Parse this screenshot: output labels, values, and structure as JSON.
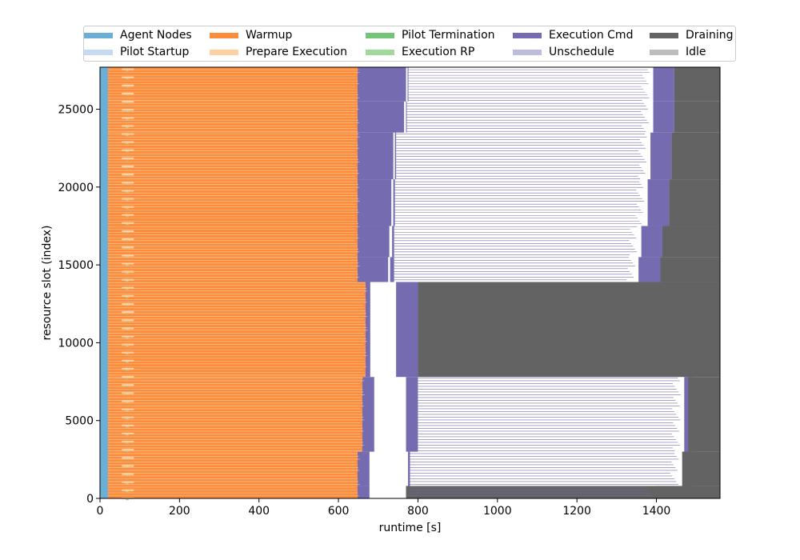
{
  "chart_data": {
    "type": "bar",
    "orientation": "horizontal-timeline",
    "xlabel": "runtime [s]",
    "ylabel": "resource slot (index)",
    "xlim": [
      0,
      1560
    ],
    "ylim": [
      0,
      27700
    ],
    "xticks": [
      0,
      200,
      400,
      600,
      800,
      1000,
      1200,
      1400
    ],
    "yticks": [
      0,
      5000,
      10000,
      15000,
      20000,
      25000
    ],
    "legend_position": "top",
    "legend": [
      {
        "name": "Agent Nodes",
        "color": "#6baed6"
      },
      {
        "name": "Pilot Startup",
        "color": "#c6dbef"
      },
      {
        "name": "Warmup",
        "color": "#fd8d3c"
      },
      {
        "name": "Prepare Execution",
        "color": "#fdd0a2"
      },
      {
        "name": "Pilot Termination",
        "color": "#74c476"
      },
      {
        "name": "Execution RP",
        "color": "#a1d99b"
      },
      {
        "name": "Execution Cmd",
        "color": "#756bb1"
      },
      {
        "name": "Unschedule",
        "color": "#bcbddc"
      },
      {
        "name": "Draining",
        "color": "#636363"
      },
      {
        "name": "Idle",
        "color": "#bdbdbd"
      }
    ],
    "phases": [
      {
        "y0": 0,
        "y1": 800,
        "pilot_startup_end": 20,
        "warmup_end": 648,
        "exec1_end": 678,
        "gap_end": 770,
        "exec2_end": 780,
        "draining_start": 770,
        "idle_end": 1400,
        "exec3_end": 1450,
        "end": 1560
      },
      {
        "y0": 800,
        "y1": 3000,
        "pilot_startup_end": 20,
        "warmup_end": 648,
        "exec1_end": 678,
        "gap_end": 775,
        "exec2_end": 780,
        "draining_start": 1465,
        "idle_end": 1465,
        "exec3_end": 1490,
        "end": 1560
      },
      {
        "y0": 3000,
        "y1": 7800,
        "pilot_startup_end": 20,
        "warmup_end": 660,
        "exec1_end": 690,
        "gap_end": 770,
        "exec2_end": 800,
        "draining_start": 1480,
        "idle_end": 1470,
        "exec3_end": 1490,
        "end": 1560
      },
      {
        "y0": 7800,
        "y1": 13900,
        "pilot_startup_end": 20,
        "warmup_end": 668,
        "exec1_end": 680,
        "gap_end": 745,
        "exec2_end": 800,
        "draining_start": 800,
        "idle_end": 800,
        "exec3_end": 800,
        "end": 1560
      },
      {
        "y0": 13900,
        "y1": 15500,
        "pilot_startup_end": 20,
        "warmup_end": 648,
        "exec1_end": 725,
        "gap_end": 730,
        "exec2_end": 740,
        "draining_start": 1410,
        "idle_end": 1355,
        "exec3_end": 1410,
        "end": 1560
      },
      {
        "y0": 15500,
        "y1": 17500,
        "pilot_startup_end": 20,
        "warmup_end": 648,
        "exec1_end": 728,
        "gap_end": 735,
        "exec2_end": 740,
        "draining_start": 1415,
        "idle_end": 1362,
        "exec3_end": 1415,
        "end": 1560
      },
      {
        "y0": 17500,
        "y1": 20500,
        "pilot_startup_end": 20,
        "warmup_end": 648,
        "exec1_end": 733,
        "gap_end": 738,
        "exec2_end": 742,
        "draining_start": 1432,
        "idle_end": 1378,
        "exec3_end": 1432,
        "end": 1560
      },
      {
        "y0": 20500,
        "y1": 23500,
        "pilot_startup_end": 20,
        "warmup_end": 648,
        "exec1_end": 738,
        "gap_end": 742,
        "exec2_end": 745,
        "draining_start": 1438,
        "idle_end": 1385,
        "exec3_end": 1438,
        "end": 1560
      },
      {
        "y0": 23500,
        "y1": 25500,
        "pilot_startup_end": 20,
        "warmup_end": 648,
        "exec1_end": 765,
        "gap_end": 770,
        "exec2_end": 772,
        "draining_start": 1445,
        "idle_end": 1392,
        "exec3_end": 1445,
        "end": 1560
      },
      {
        "y0": 25500,
        "y1": 27700,
        "pilot_startup_end": 20,
        "warmup_end": 648,
        "exec1_end": 770,
        "gap_end": 774,
        "exec2_end": 776,
        "draining_start": 1445,
        "idle_end": 1392,
        "exec3_end": 1445,
        "end": 1560
      }
    ]
  }
}
